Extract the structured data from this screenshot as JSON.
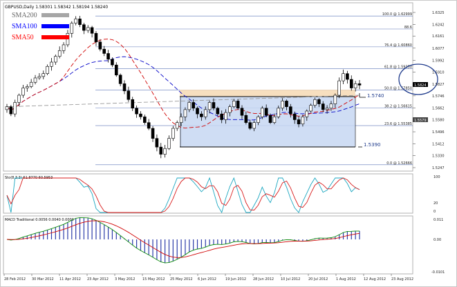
{
  "chart_data": {
    "type": "candlestick",
    "symbol_line": "GBPUSD,Daily  1.58301 1.58342 1.58194 1.58240",
    "price_axis": {
      "ticks": [
        "1.6325",
        "1.6242",
        "1.6161",
        "1.6077",
        "1.5992",
        "1.5910",
        "1.5827",
        "1.5746",
        "1.5662",
        "1.5580",
        "1.5496",
        "1.5412",
        "1.5330",
        "1.5247"
      ],
      "highlight_value": "1.5824",
      "highlight_value2": "1.5579"
    },
    "date_axis": [
      "28 Feb 2012",
      "30 Mar 2012",
      "11 Apr 2012",
      "23 Apr 2012",
      "3 May 2012",
      "15 May 2012",
      "25 May 2012",
      "6 Jun 2012",
      "19 Jun 2012",
      "28 Jun 2012",
      "10 Jul 2012",
      "20 Jul 2012",
      "1 Aug 2012",
      "12 Aug 2012",
      "23 Aug 2012"
    ],
    "legend": [
      {
        "name": "SMA200",
        "color": "#a6a6a6"
      },
      {
        "name": "SMA100",
        "color": "#0000ff"
      },
      {
        "name": "SMA50",
        "color": "#ff0000"
      }
    ],
    "fib_levels": [
      {
        "label": "100.0 @ 1.62999",
        "value": 1.63
      },
      {
        "label": "88.6",
        "value": 1.621
      },
      {
        "label": "76.4 @ 1.60860",
        "value": 1.6086
      },
      {
        "label": "61.8 @ 1.59350",
        "value": 1.5935
      },
      {
        "label": "50.0 @ 1.57850",
        "value": 1.5785
      },
      {
        "label": "38.2 @ 1.56615",
        "value": 1.5662
      },
      {
        "label": "23.6 @ 1.55385",
        "value": 1.5539
      },
      {
        "label": "0.0 @ 1.52666",
        "value": 1.5267
      }
    ],
    "annotations": {
      "upper": "1.5740",
      "lower": "1.5390"
    },
    "closes": [
      1.567,
      1.562,
      1.57,
      1.575,
      1.58,
      1.581,
      1.584,
      1.587,
      1.588,
      1.59,
      1.595,
      1.598,
      1.602,
      1.606,
      1.61,
      1.618,
      1.625,
      1.628,
      1.624,
      1.62,
      1.622,
      1.618,
      1.612,
      1.607,
      1.604,
      1.6,
      1.596,
      1.589,
      1.583,
      1.578,
      1.572,
      1.566,
      1.562,
      1.56,
      1.556,
      1.552,
      1.545,
      1.539,
      1.534,
      1.538,
      1.545,
      1.552,
      1.556,
      1.56,
      1.565,
      1.57,
      1.566,
      1.562,
      1.56,
      1.565,
      1.57,
      1.566,
      1.562,
      1.558,
      1.563,
      1.567,
      1.571,
      1.566,
      1.561,
      1.556,
      1.552,
      1.556,
      1.56,
      1.566,
      1.561,
      1.556,
      1.56,
      1.566,
      1.571,
      1.567,
      1.562,
      1.558,
      1.555,
      1.56,
      1.564,
      1.568,
      1.572,
      1.569,
      1.565,
      1.566,
      1.569,
      1.575,
      1.585,
      1.59,
      1.586,
      1.58,
      1.583,
      1.582
    ],
    "sma200": {
      "start": 1.567,
      "end": 1.575
    },
    "stoch": {
      "label": "Sto(8,3,3) 61.8770 60.5953",
      "levels": [
        "100",
        "20",
        "0"
      ]
    },
    "macd": {
      "label": "MACD Traditional 0.0056 0.0040 0.0000",
      "levels": [
        "0.011",
        "0.00",
        "-0.0101"
      ]
    }
  }
}
